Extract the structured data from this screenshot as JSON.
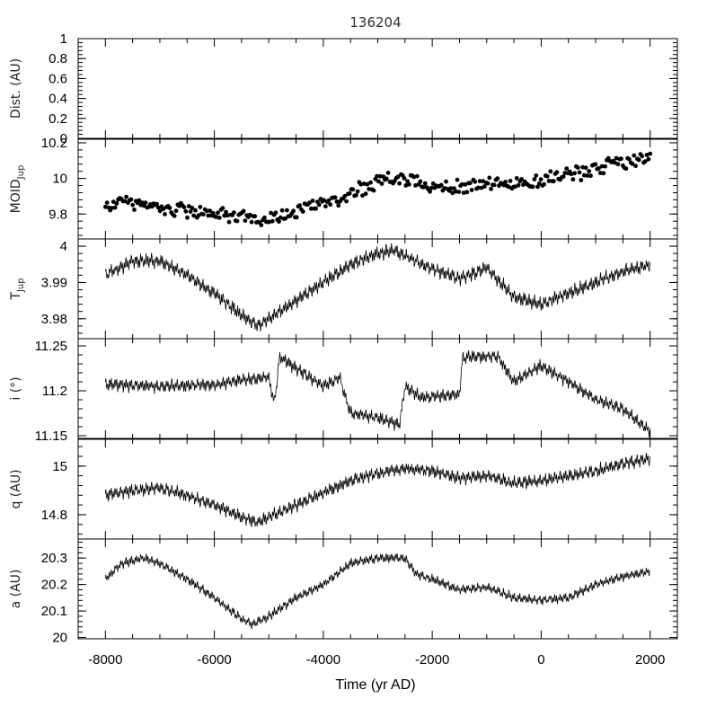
{
  "chart_data": {
    "type": "line",
    "title": "136204",
    "xlabel": "Time (yr AD)",
    "xlim": [
      -8500,
      2500
    ],
    "x_ticks": [
      "-8000",
      "-6000",
      "-4000",
      "-2000",
      "0",
      "2000"
    ],
    "x_tick_values": [
      -8000,
      -6000,
      -4000,
      -2000,
      0,
      2000
    ],
    "panels": [
      {
        "id": "dist",
        "ylabel": "Dist. (AU)",
        "ylabel_sub": "",
        "type": "line",
        "ylim": [
          0,
          1
        ],
        "y_ticks": [
          "1",
          "0.8",
          "0.6",
          "0.4",
          "0.2",
          "0"
        ],
        "y_tick_values": [
          1,
          0.8,
          0.6,
          0.4,
          0.2,
          0
        ],
        "series": []
      },
      {
        "id": "moid",
        "ylabel": "MOID",
        "ylabel_sub": "Jup",
        "type": "scatter",
        "ylim": [
          9.66,
          10.22
        ],
        "y_ticks": [
          "10.2",
          "10",
          "9.8"
        ],
        "y_tick_values": [
          10.2,
          10.0,
          9.8
        ],
        "series": [
          {
            "x": [
              -8000,
              -7500,
              -7000,
              -6500,
              -6000,
              -5500,
              -5000,
              -4500,
              -4000,
              -3500,
              -3000,
              -2500,
              -2000,
              -1500,
              -1000,
              -500,
              0,
              500,
              1000,
              1500,
              2000
            ],
            "y": [
              9.85,
              9.86,
              9.84,
              9.82,
              9.8,
              9.78,
              9.76,
              9.82,
              9.86,
              9.92,
              9.98,
              10.0,
              9.96,
              9.95,
              9.97,
              9.96,
              9.99,
              10.02,
              10.06,
              10.09,
              10.12
            ],
            "spread": 0.05
          }
        ]
      },
      {
        "id": "tjup",
        "ylabel": "T",
        "ylabel_sub": "Jup",
        "type": "line",
        "ylim": [
          3.9745,
          4.002
        ],
        "y_ticks": [
          "4",
          "3.99",
          "3.98"
        ],
        "y_tick_values": [
          4.0,
          3.99,
          3.98
        ],
        "series": [
          {
            "x": [
              -8000,
              -7500,
              -7000,
              -6500,
              -6000,
              -5500,
              -5200,
              -4800,
              -4000,
              -3500,
              -3000,
              -2700,
              -2200,
              -1500,
              -1000,
              -500,
              0,
              500,
              1000,
              1500,
              2000
            ],
            "y": [
              3.992,
              3.996,
              3.996,
              3.992,
              3.987,
              3.981,
              3.978,
              3.982,
              3.99,
              3.995,
              3.998,
              3.999,
              3.995,
              3.991,
              3.994,
              3.986,
              3.984,
              3.987,
              3.99,
              3.993,
              3.995
            ],
            "amplitude": 0.0022
          }
        ]
      },
      {
        "id": "inc",
        "ylabel": "i (°)",
        "ylabel_sub": "",
        "type": "line",
        "ylim": [
          11.147,
          11.258
        ],
        "y_ticks": [
          "11.25",
          "11.2",
          "11.15"
        ],
        "y_tick_values": [
          11.25,
          11.2,
          11.15
        ],
        "series": [
          {
            "x": [
              -8000,
              -7000,
              -6000,
              -5500,
              -5000,
              -4900,
              -4800,
              -4500,
              -4000,
              -3700,
              -3500,
              -3000,
              -2600,
              -2500,
              -2200,
              -1500,
              -1450,
              -1300,
              -800,
              -500,
              0,
              500,
              1000,
              1500,
              2000
            ],
            "y": [
              11.207,
              11.205,
              11.207,
              11.212,
              11.215,
              11.185,
              11.238,
              11.225,
              11.205,
              11.215,
              11.175,
              11.17,
              11.162,
              11.205,
              11.192,
              11.196,
              11.235,
              11.238,
              11.238,
              11.21,
              11.228,
              11.21,
              11.19,
              11.18,
              11.155
            ],
            "amplitude": 0.008
          }
        ]
      },
      {
        "id": "q",
        "ylabel": "q (AU)",
        "ylabel_sub": "",
        "type": "line",
        "ylim": [
          14.7,
          15.11
        ],
        "y_ticks": [
          "15",
          "14.8"
        ],
        "y_tick_values": [
          15.0,
          14.8
        ],
        "series": [
          {
            "x": [
              -8000,
              -7500,
              -7000,
              -6500,
              -6000,
              -5500,
              -5200,
              -4800,
              -4000,
              -3500,
              -3000,
              -2500,
              -2000,
              -1500,
              -1000,
              -500,
              0,
              500,
              1000,
              1500,
              2000
            ],
            "y": [
              14.88,
              14.9,
              14.91,
              14.88,
              14.84,
              14.79,
              14.77,
              14.81,
              14.89,
              14.94,
              14.97,
              14.99,
              14.98,
              14.95,
              14.96,
              14.93,
              14.94,
              14.96,
              14.98,
              15.01,
              15.03
            ],
            "amplitude": 0.03
          }
        ]
      },
      {
        "id": "a",
        "ylabel": "a (AU)",
        "ylabel_sub": "",
        "type": "line",
        "ylim": [
          19.995,
          20.372
        ],
        "y_ticks": [
          "20.3",
          "20.2",
          "20.1",
          "20"
        ],
        "y_tick_values": [
          20.3,
          20.2,
          20.1,
          20.0
        ],
        "series": [
          {
            "x": [
              -8000,
              -7700,
              -7300,
              -7000,
              -6500,
              -6000,
              -5500,
              -5300,
              -5000,
              -4500,
              -4000,
              -3500,
              -3000,
              -2500,
              -2300,
              -2000,
              -1500,
              -1000,
              -500,
              0,
              500,
              1000,
              1500,
              2000
            ],
            "y": [
              20.22,
              20.28,
              20.3,
              20.28,
              20.22,
              20.15,
              20.07,
              20.05,
              20.08,
              20.15,
              20.2,
              20.28,
              20.3,
              20.3,
              20.24,
              20.22,
              20.18,
              20.19,
              20.15,
              20.14,
              20.15,
              20.2,
              20.23,
              20.25
            ],
            "amplitude": 0.02
          }
        ]
      }
    ]
  }
}
